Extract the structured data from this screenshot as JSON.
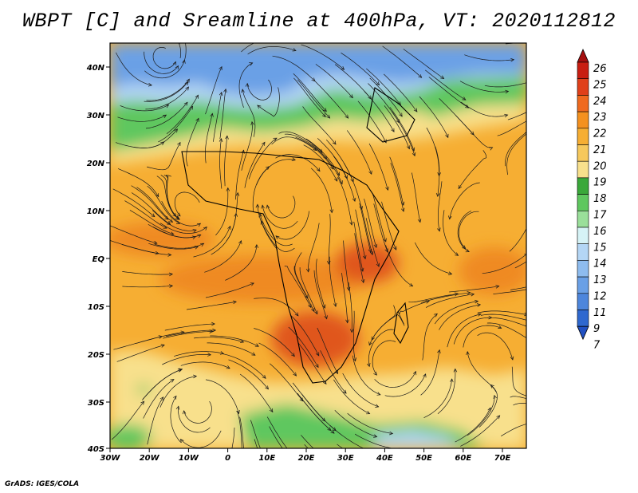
{
  "title": "WBPT [C] and Sreamline at 400hPa, VT: 2020112812",
  "footer": "GrADS: IGES/COLA",
  "map": {
    "lon_labels": [
      "30W",
      "20W",
      "10W",
      "0",
      "10E",
      "20E",
      "30E",
      "40E",
      "50E",
      "60E",
      "70E"
    ],
    "lat_labels": [
      "40N",
      "30N",
      "20N",
      "10N",
      "EQ",
      "10S",
      "20S",
      "30S",
      "40S"
    ]
  },
  "colorbar": {
    "labels": [
      "26",
      "25",
      "24",
      "23",
      "22",
      "21",
      "20",
      "19",
      "18",
      "17",
      "16",
      "15",
      "14",
      "13",
      "12",
      "11",
      "9",
      "7"
    ],
    "colors": [
      "#a50f0f",
      "#c81e12",
      "#e0401a",
      "#ef6a1f",
      "#f4911f",
      "#f6ae33",
      "#f6c85c",
      "#f8e08c",
      "#3aa83a",
      "#5fc75f",
      "#9adf9a",
      "#d6f3f6",
      "#b4d6f5",
      "#8ebcef",
      "#6aa0e6",
      "#4d86dc",
      "#2f68cf",
      "#2150c2"
    ]
  },
  "field_colors": {
    "blue": "#6aa0e6",
    "lightblue": "#b4d6f5",
    "green": "#5fc75f",
    "lightgreen": "#9adf9a",
    "pale": "#f8e08c",
    "orange": "#f6ae33",
    "darkorange": "#ef8a22",
    "red": "#e0561a"
  }
}
